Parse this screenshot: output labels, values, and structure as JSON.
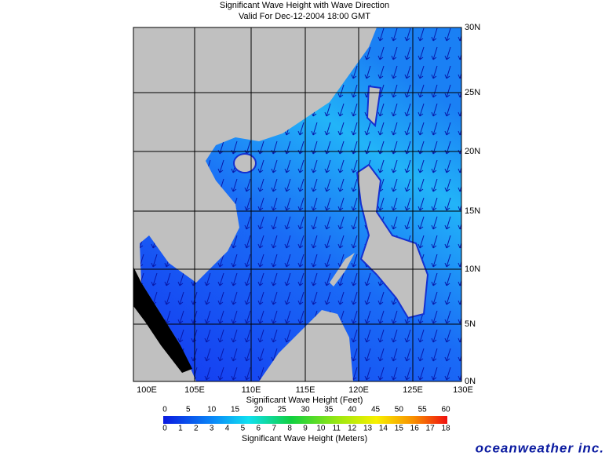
{
  "header": {
    "title": "Significant Wave Height with Wave Direction",
    "subtitle": "Valid For Dec-12-2004 18:00 GMT"
  },
  "map": {
    "lon_labels": [
      "100E",
      "105E",
      "110E",
      "115E",
      "120E",
      "125E",
      "130E"
    ],
    "lat_labels": [
      "30N",
      "25N",
      "20N",
      "15N",
      "10N",
      "5N",
      "0N"
    ]
  },
  "colorbar": {
    "feet_title": "Significant Wave Height (Feet)",
    "feet_labels": [
      "0",
      "5",
      "10",
      "15",
      "20",
      "25",
      "30",
      "35",
      "40",
      "45",
      "50",
      "55",
      "60"
    ],
    "meters_title": "Significant Wave Height (Meters)",
    "meters_labels": [
      "0",
      "1",
      "2",
      "3",
      "4",
      "5",
      "6",
      "7",
      "8",
      "9",
      "10",
      "11",
      "12",
      "13",
      "14",
      "15",
      "16",
      "17",
      "18"
    ]
  },
  "brand": "oceanweather inc."
}
